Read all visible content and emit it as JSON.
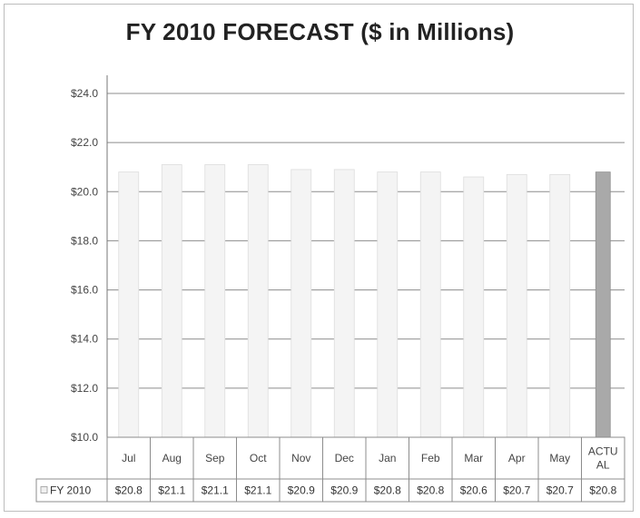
{
  "chart_data": {
    "type": "bar",
    "title": "FY 2010 FORECAST ($ in Millions)",
    "xlabel": "",
    "ylabel": "",
    "ylim": [
      10,
      24
    ],
    "yticks": [
      {
        "value": 10,
        "label": "$10.0"
      },
      {
        "value": 12,
        "label": "$12.0"
      },
      {
        "value": 14,
        "label": "$14.0"
      },
      {
        "value": 16,
        "label": "$16.0"
      },
      {
        "value": 18,
        "label": "$18.0"
      },
      {
        "value": 20,
        "label": "$20.0"
      },
      {
        "value": 22,
        "label": "$22.0"
      },
      {
        "value": 24,
        "label": "$24.0"
      }
    ],
    "categories": [
      "Jul",
      "Aug",
      "Sep",
      "Oct",
      "Nov",
      "Dec",
      "Jan",
      "Feb",
      "Mar",
      "Apr",
      "May",
      "ACTUAL"
    ],
    "category_lines": [
      [
        "Jul"
      ],
      [
        "Aug"
      ],
      [
        "Sep"
      ],
      [
        "Oct"
      ],
      [
        "Nov"
      ],
      [
        "Dec"
      ],
      [
        "Jan"
      ],
      [
        "Feb"
      ],
      [
        "Mar"
      ],
      [
        "Apr"
      ],
      [
        "May"
      ],
      [
        "ACTU",
        "AL"
      ]
    ],
    "series": [
      {
        "name": "FY 2010",
        "values": [
          20.8,
          21.1,
          21.1,
          21.1,
          20.9,
          20.9,
          20.8,
          20.8,
          20.6,
          20.7,
          20.7,
          20.8
        ],
        "value_labels": [
          "$20.8",
          "$21.1",
          "$21.1",
          "$21.1",
          "$20.9",
          "$20.9",
          "$20.8",
          "$20.8",
          "$20.6",
          "$20.7",
          "$20.7",
          "$20.8"
        ]
      }
    ],
    "grid": true,
    "legend": "data-table",
    "colors": {
      "forecast_bar": "#f4f4f4",
      "actual_bar": "#a9a9a9",
      "gridline": "#8c8c8c",
      "axis": "#777777"
    }
  }
}
